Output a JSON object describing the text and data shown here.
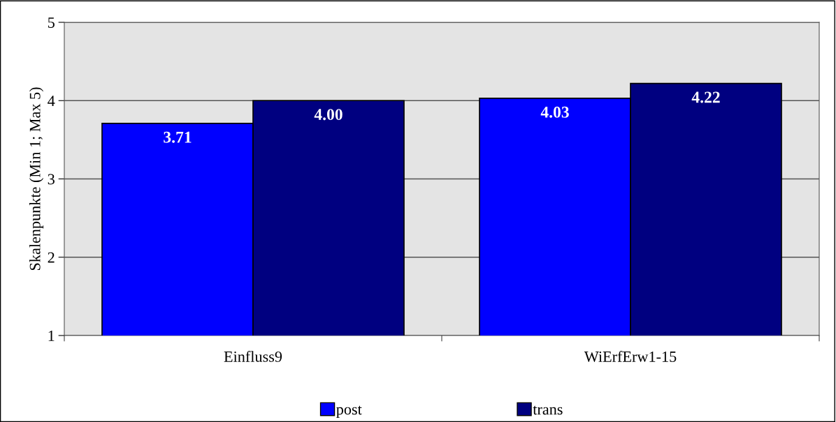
{
  "chart_data": {
    "type": "bar",
    "ylabel": "Skalenpunkte (Min 1; Max 5)",
    "categories": [
      "Einfluss9",
      "WiErfErw1-15"
    ],
    "series": [
      {
        "name": "post",
        "color": "#0000ff",
        "values": [
          3.71,
          4.03
        ],
        "value_labels": [
          "3.71",
          "4.03"
        ]
      },
      {
        "name": "trans",
        "color": "#000080",
        "values": [
          4.0,
          4.22
        ],
        "value_labels": [
          "4.00",
          "4.22"
        ]
      }
    ],
    "ylim": [
      1,
      5
    ],
    "yticks": [
      1,
      2,
      3,
      4,
      5
    ],
    "grid": "y",
    "legend": "bottom"
  }
}
